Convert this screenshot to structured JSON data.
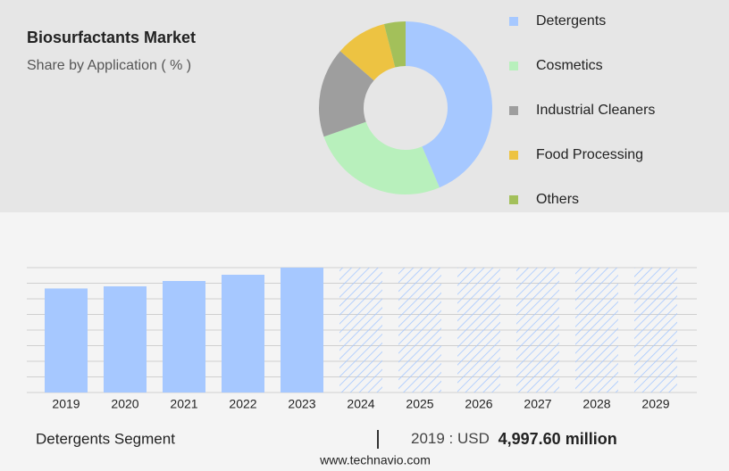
{
  "chart_data": [
    {
      "type": "pie",
      "title": "Biosurfactants Market",
      "subtitle": "Share by Application ( % )",
      "categories": [
        "Detergents",
        "Cosmetics",
        "Industrial Cleaners",
        "Food Processing",
        "Others"
      ],
      "values": [
        43.6,
        26.0,
        16.8,
        9.6,
        4.0
      ],
      "colors": [
        "#a6c8ff",
        "#b8f0bc",
        "#9e9e9e",
        "#edc342",
        "#a3c05a"
      ],
      "donut": true,
      "legend": "right"
    },
    {
      "type": "bar",
      "categories": [
        "2019",
        "2020",
        "2021",
        "2022",
        "2023",
        "2024",
        "2025",
        "2026",
        "2027",
        "2028",
        "2029"
      ],
      "values": [
        4997.6,
        5100,
        5357,
        5657,
        6000,
        null,
        null,
        null,
        null,
        null,
        null
      ],
      "color": "#a6c8ff",
      "ylim": [
        0,
        6000
      ],
      "yticks": [
        0,
        750,
        1500,
        2250,
        3000,
        3750,
        4500,
        5250,
        6000
      ],
      "grid": true
    }
  ],
  "footer": {
    "segment": "Detergents Segment",
    "year_label": "2019 : USD",
    "value_label": "4,997.60 million",
    "website": "www.technavio.com"
  }
}
